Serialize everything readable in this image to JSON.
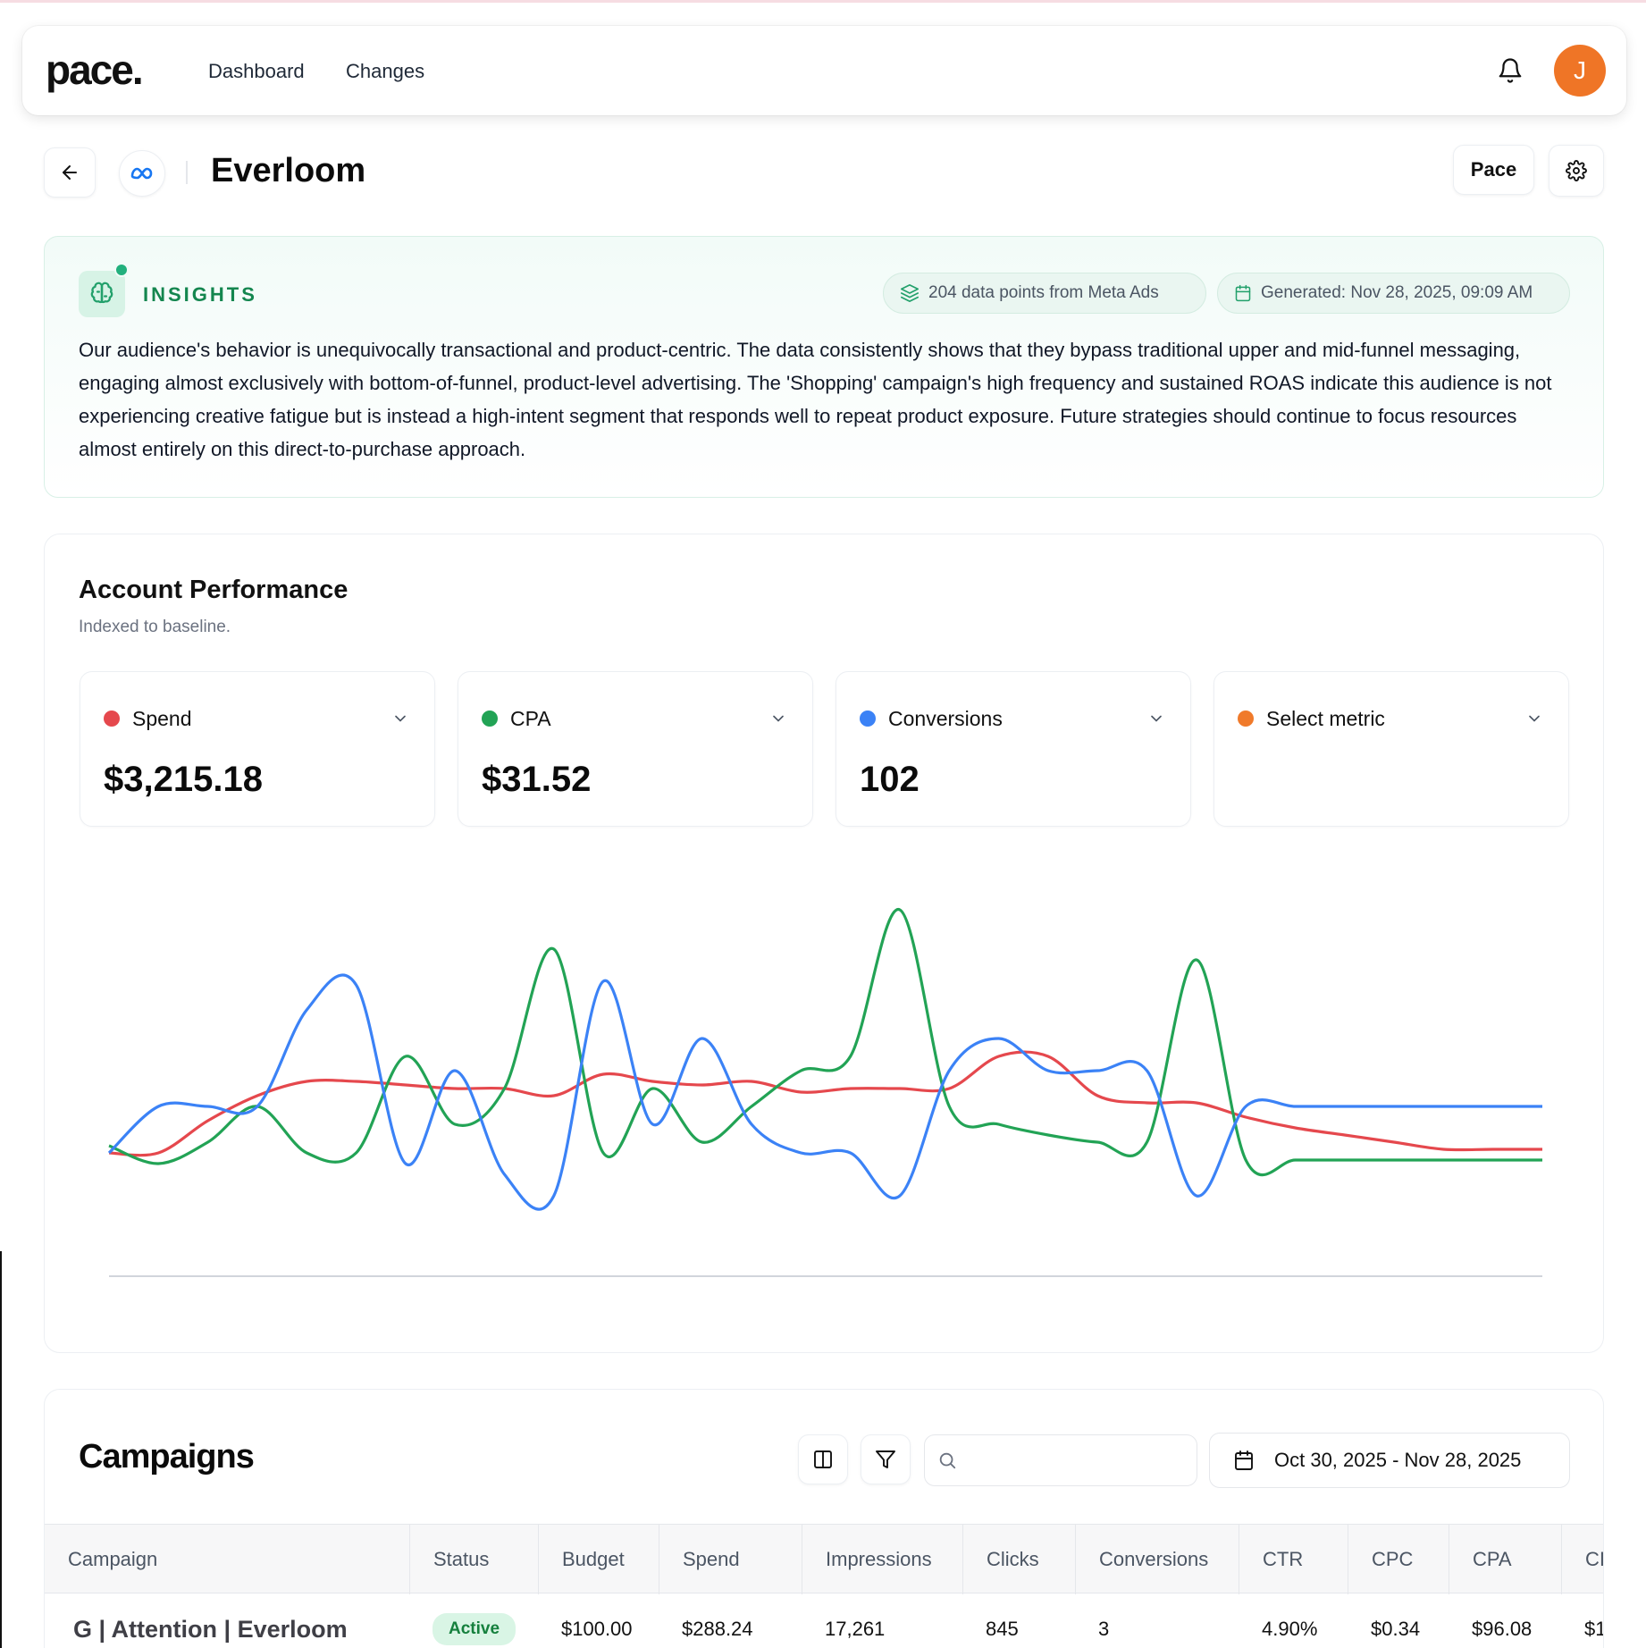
{
  "header": {
    "logo": "pace.",
    "nav": [
      {
        "label": "Dashboard"
      },
      {
        "label": "Changes"
      }
    ],
    "avatar_initial": "J",
    "avatar_color": "#ef7526"
  },
  "page": {
    "title": "Everloom",
    "pace_button": "Pace"
  },
  "insights": {
    "label": "INSIGHTS",
    "data_points": "204 data points from Meta Ads",
    "generated": "Generated: Nov 28, 2025, 09:09 AM",
    "text": "Our audience's behavior is unequivocally transactional and product-centric. The data consistently shows that they bypass traditional upper and mid-funnel messaging, engaging almost exclusively with bottom-of-funnel, product-level advertising. The 'Shopping' campaign's high frequency and sustained ROAS indicate this audience is not experiencing creative fatigue but is instead a high-intent segment that responds well to repeat product exposure. Future strategies should continue to focus resources almost entirely on this direct-to-purchase approach."
  },
  "performance": {
    "title": "Account Performance",
    "subtitle": "Indexed to baseline.",
    "metrics": [
      {
        "name": "Spend",
        "value": "$3,215.18",
        "color": "#e5484d"
      },
      {
        "name": "CPA",
        "value": "$31.52",
        "color": "#22a355"
      },
      {
        "name": "Conversions",
        "value": "102",
        "color": "#3b82f6"
      },
      {
        "name": "Select metric",
        "value": "",
        "color": "#f07a2a"
      }
    ]
  },
  "chart_data": {
    "type": "line",
    "title": "",
    "xlabel": "",
    "ylabel": "",
    "grid": false,
    "legend": "none",
    "ylim": [
      0,
      10
    ],
    "x": [
      1,
      2,
      3,
      4,
      5,
      6,
      7,
      8,
      9,
      10,
      11,
      12,
      13,
      14,
      15,
      16,
      17,
      18,
      19,
      20,
      21,
      22,
      23,
      24,
      25,
      26,
      27,
      28,
      29,
      30
    ],
    "series": [
      {
        "color": "#e5484d",
        "values": [
          2.2,
          2.2,
          3.1,
          3.8,
          4.2,
          4.2,
          4.1,
          4.0,
          4.0,
          3.8,
          4.4,
          4.2,
          4.1,
          4.2,
          3.9,
          4.0,
          4.0,
          4.0,
          4.9,
          4.9,
          3.8,
          3.6,
          3.6,
          3.2,
          2.9,
          2.7,
          2.5,
          2.3,
          2.3,
          2.3
        ]
      },
      {
        "color": "#22a355",
        "values": [
          2.4,
          1.9,
          2.5,
          3.5,
          2.2,
          2.2,
          4.9,
          3.0,
          4.0,
          7.9,
          2.2,
          4.0,
          2.5,
          3.5,
          4.5,
          4.9,
          9.0,
          3.5,
          3.0,
          2.7,
          2.5,
          2.5,
          7.6,
          2.0,
          2.0,
          2.0,
          2.0,
          2.0,
          2.0,
          2.0
        ]
      },
      {
        "color": "#3b82f6",
        "values": [
          2.2,
          3.5,
          3.5,
          3.5,
          6.2,
          6.9,
          1.9,
          4.5,
          1.6,
          1.0,
          7.0,
          3.0,
          5.4,
          3.0,
          2.2,
          2.2,
          1.0,
          4.5,
          5.4,
          4.5,
          4.5,
          4.5,
          1.0,
          3.5,
          3.5,
          3.5,
          3.5,
          3.5,
          3.5,
          3.5
        ]
      }
    ]
  },
  "campaigns": {
    "title": "Campaigns",
    "search_placeholder": "",
    "date_range": "Oct 30, 2025 - Nov 28, 2025",
    "columns": [
      "Campaign",
      "Status",
      "Budget",
      "Spend",
      "Impressions",
      "Clicks",
      "Conversions",
      "CTR",
      "CPC",
      "CPA",
      "CI"
    ],
    "rows": [
      {
        "campaign": "G | Attention | Everloom",
        "status": "Active",
        "budget": "$100.00",
        "spend": "$288.24",
        "impressions": "17,261",
        "clicks": "845",
        "conversions": "3",
        "ctr": "4.90%",
        "cpc": "$0.34",
        "cpa": "$96.08",
        "extra": "$1"
      }
    ]
  }
}
